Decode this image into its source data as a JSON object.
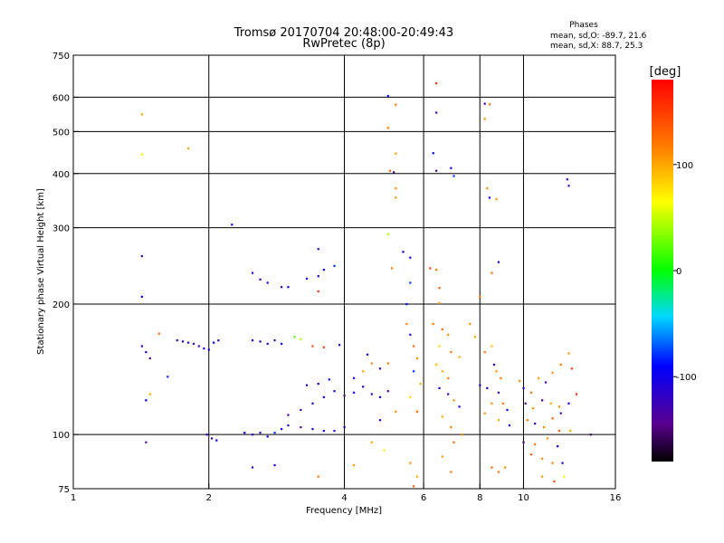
{
  "chart_data": {
    "type": "scatter",
    "title": "Tromsø 20170704 20:48:00-20:49:43",
    "subtitle": "RwPretec (8p)",
    "phase_stats": {
      "header": "Phases",
      "line1": "mean, sd,O: -89.7, 21.6",
      "line2": "mean, sd,X:  88.7, 25.3"
    },
    "xlabel": "Frequency [MHz]",
    "ylabel": "Stationary phase Virtual Height [km]",
    "xscale": "log",
    "yscale": "log",
    "xlim": [
      1,
      16
    ],
    "ylim": [
      75,
      750
    ],
    "x_ticks": [
      1,
      2,
      4,
      6,
      8,
      10,
      16
    ],
    "x_tick_labels": [
      "1",
      "2",
      "4",
      "6",
      "8",
      "10",
      "16"
    ],
    "x_grid": [
      2,
      4,
      6,
      8,
      10
    ],
    "y_ticks": [
      75,
      100,
      200,
      300,
      400,
      500,
      600,
      750
    ],
    "y_tick_labels": [
      "75",
      "100",
      "200",
      "300",
      "400",
      "500",
      "600",
      "750"
    ],
    "y_grid": [
      100,
      200,
      300,
      400,
      500,
      600
    ],
    "grid": true,
    "colorbar": {
      "label": "[deg]",
      "ticks": [
        100,
        0,
        -100
      ],
      "tick_labels": [
        "100",
        "0",
        "-100"
      ],
      "range": [
        -180,
        180
      ]
    },
    "points": [
      [
        1.42,
        548,
        100
      ],
      [
        1.42,
        443,
        70
      ],
      [
        1.42,
        258,
        -130
      ],
      [
        1.42,
        208,
        -90
      ],
      [
        1.42,
        160,
        -130
      ],
      [
        1.45,
        155,
        -110
      ],
      [
        1.48,
        150,
        -140
      ],
      [
        1.45,
        120,
        -90
      ],
      [
        1.48,
        124,
        100
      ],
      [
        1.45,
        96,
        -140
      ],
      [
        1.55,
        171,
        130
      ],
      [
        1.62,
        136,
        -80
      ],
      [
        1.8,
        457,
        100
      ],
      [
        1.7,
        165,
        -120
      ],
      [
        1.75,
        164,
        -110
      ],
      [
        1.8,
        163,
        -100
      ],
      [
        1.85,
        162,
        -120
      ],
      [
        1.9,
        160,
        -130
      ],
      [
        1.95,
        158,
        -110
      ],
      [
        2.0,
        157,
        -100
      ],
      [
        2.05,
        163,
        -90
      ],
      [
        2.1,
        165,
        -120
      ],
      [
        1.98,
        100,
        -110
      ],
      [
        2.03,
        98,
        -120
      ],
      [
        2.08,
        97,
        -90
      ],
      [
        2.25,
        305,
        -90
      ],
      [
        2.5,
        236,
        -110
      ],
      [
        2.6,
        228,
        -120
      ],
      [
        2.7,
        224,
        -100
      ],
      [
        2.9,
        219,
        -130
      ],
      [
        3.0,
        219,
        -90
      ],
      [
        3.3,
        229,
        -110
      ],
      [
        3.5,
        232,
        -100
      ],
      [
        3.6,
        240,
        -90
      ],
      [
        3.8,
        245,
        -80
      ],
      [
        3.5,
        268,
        -120
      ],
      [
        3.5,
        214,
        150
      ],
      [
        2.5,
        165,
        -100
      ],
      [
        2.6,
        164,
        -120
      ],
      [
        2.7,
        162,
        -110
      ],
      [
        2.8,
        165,
        -130
      ],
      [
        2.9,
        162,
        -90
      ],
      [
        3.1,
        168,
        20
      ],
      [
        3.2,
        166,
        40
      ],
      [
        3.4,
        160,
        140
      ],
      [
        3.6,
        159,
        150
      ],
      [
        3.9,
        161,
        -110
      ],
      [
        2.4,
        101,
        -100
      ],
      [
        2.5,
        100,
        -110
      ],
      [
        2.6,
        101,
        -120
      ],
      [
        2.7,
        99,
        -90
      ],
      [
        2.8,
        101,
        -80
      ],
      [
        2.9,
        103,
        -100
      ],
      [
        3.0,
        105,
        -120
      ],
      [
        3.2,
        104,
        -130
      ],
      [
        3.4,
        103,
        -110
      ],
      [
        3.6,
        102,
        -100
      ],
      [
        3.8,
        102,
        -120
      ],
      [
        4.0,
        104,
        -110
      ],
      [
        3.0,
        111,
        -140
      ],
      [
        3.2,
        114,
        -130
      ],
      [
        3.4,
        118,
        -120
      ],
      [
        3.6,
        122,
        -110
      ],
      [
        3.8,
        126,
        -100
      ],
      [
        4.0,
        123,
        -150
      ],
      [
        3.3,
        130,
        -110
      ],
      [
        3.5,
        131,
        -100
      ],
      [
        3.7,
        134,
        -90
      ],
      [
        4.2,
        125,
        -100
      ],
      [
        4.4,
        129,
        -110
      ],
      [
        4.6,
        124,
        -120
      ],
      [
        4.8,
        122,
        -100
      ],
      [
        5.0,
        126,
        -140
      ],
      [
        4.2,
        135,
        -110
      ],
      [
        4.4,
        140,
        100
      ],
      [
        4.6,
        146,
        110
      ],
      [
        4.8,
        142,
        -110
      ],
      [
        5.0,
        146,
        120
      ],
      [
        4.5,
        153,
        -110
      ],
      [
        4.8,
        108,
        -100
      ],
      [
        5.2,
        113,
        110
      ],
      [
        4.6,
        96,
        100
      ],
      [
        4.9,
        92,
        70
      ],
      [
        4.2,
        85,
        110
      ],
      [
        3.5,
        80,
        120
      ],
      [
        2.5,
        84,
        -120
      ],
      [
        2.8,
        85,
        -100
      ],
      [
        5.0,
        604,
        -90
      ],
      [
        5.2,
        577,
        120
      ],
      [
        5.0,
        510,
        120
      ],
      [
        5.2,
        445,
        100
      ],
      [
        5.05,
        406,
        130
      ],
      [
        5.15,
        403,
        -150
      ],
      [
        5.2,
        370,
        110
      ],
      [
        5.2,
        352,
        110
      ],
      [
        5.0,
        290,
        40
      ],
      [
        5.4,
        264,
        -110
      ],
      [
        5.1,
        242,
        120
      ],
      [
        5.6,
        224,
        -80
      ],
      [
        5.6,
        256,
        -100
      ],
      [
        5.5,
        200,
        -90
      ],
      [
        5.5,
        180,
        120
      ],
      [
        5.6,
        170,
        -110
      ],
      [
        5.7,
        160,
        130
      ],
      [
        5.8,
        150,
        110
      ],
      [
        5.7,
        140,
        -80
      ],
      [
        5.9,
        131,
        100
      ],
      [
        5.6,
        122,
        80
      ],
      [
        5.8,
        113,
        130
      ],
      [
        5.6,
        86,
        110
      ],
      [
        5.8,
        80,
        100
      ],
      [
        5.7,
        76,
        130
      ],
      [
        6.4,
        646,
        150
      ],
      [
        6.4,
        553,
        -120
      ],
      [
        6.3,
        446,
        -100
      ],
      [
        6.4,
        406,
        -130
      ],
      [
        6.9,
        412,
        -90
      ],
      [
        7.0,
        395,
        -80
      ],
      [
        6.2,
        242,
        150
      ],
      [
        6.4,
        240,
        120
      ],
      [
        6.5,
        218,
        130
      ],
      [
        6.5,
        201,
        110
      ],
      [
        6.3,
        180,
        120
      ],
      [
        6.6,
        175,
        130
      ],
      [
        6.8,
        170,
        110
      ],
      [
        6.5,
        160,
        80
      ],
      [
        6.9,
        155,
        120
      ],
      [
        7.2,
        151,
        100
      ],
      [
        6.4,
        145,
        90
      ],
      [
        6.6,
        140,
        100
      ],
      [
        6.8,
        135,
        120
      ],
      [
        6.5,
        128,
        -110
      ],
      [
        6.8,
        124,
        -130
      ],
      [
        7.0,
        120,
        110
      ],
      [
        7.2,
        116,
        -100
      ],
      [
        6.6,
        110,
        100
      ],
      [
        6.9,
        104,
        120
      ],
      [
        7.3,
        100,
        110
      ],
      [
        7.0,
        96,
        130
      ],
      [
        6.6,
        89,
        110
      ],
      [
        6.9,
        82,
        120
      ],
      [
        8.2,
        580,
        -130
      ],
      [
        8.4,
        578,
        120
      ],
      [
        8.2,
        535,
        110
      ],
      [
        8.3,
        370,
        110
      ],
      [
        8.7,
        349,
        110
      ],
      [
        8.4,
        352,
        -100
      ],
      [
        8.8,
        250,
        -110
      ],
      [
        8.5,
        236,
        130
      ],
      [
        8.0,
        208,
        120
      ],
      [
        7.6,
        180,
        110
      ],
      [
        7.8,
        168,
        100
      ],
      [
        8.2,
        155,
        120
      ],
      [
        8.5,
        160,
        90
      ],
      [
        8.6,
        145,
        -110
      ],
      [
        8.7,
        140,
        110
      ],
      [
        8.9,
        135,
        120
      ],
      [
        8.0,
        130,
        -110
      ],
      [
        8.3,
        128,
        -120
      ],
      [
        8.8,
        125,
        -130
      ],
      [
        8.5,
        118,
        110
      ],
      [
        9.0,
        118,
        120
      ],
      [
        9.2,
        114,
        -90
      ],
      [
        8.2,
        112,
        110
      ],
      [
        8.8,
        108,
        100
      ],
      [
        9.3,
        105,
        -100
      ],
      [
        8.5,
        84,
        130
      ],
      [
        8.8,
        82,
        120
      ],
      [
        9.1,
        84,
        110
      ],
      [
        9.8,
        133,
        110
      ],
      [
        10.0,
        128,
        -110
      ],
      [
        10.4,
        125,
        120
      ],
      [
        10.8,
        135,
        100
      ],
      [
        11.2,
        132,
        -120
      ],
      [
        11.6,
        139,
        110
      ],
      [
        12.1,
        145,
        120
      ],
      [
        12.8,
        142,
        150
      ],
      [
        13.1,
        124,
        160
      ],
      [
        10.1,
        118,
        -140
      ],
      [
        10.5,
        115,
        110
      ],
      [
        11.0,
        120,
        -130
      ],
      [
        11.5,
        118,
        100
      ],
      [
        12.0,
        116,
        110
      ],
      [
        12.6,
        118,
        -110
      ],
      [
        10.2,
        108,
        120
      ],
      [
        10.6,
        106,
        -120
      ],
      [
        11.1,
        104,
        110
      ],
      [
        11.6,
        109,
        130
      ],
      [
        12.1,
        112,
        -130
      ],
      [
        12.7,
        102,
        100
      ],
      [
        10.0,
        96,
        -150
      ],
      [
        10.6,
        95,
        120
      ],
      [
        11.3,
        98,
        110
      ],
      [
        11.9,
        94,
        -110
      ],
      [
        10.4,
        90,
        130
      ],
      [
        11.0,
        88,
        110
      ],
      [
        11.6,
        86,
        120
      ],
      [
        12.2,
        86,
        -110
      ],
      [
        11.0,
        80,
        110
      ],
      [
        11.7,
        78,
        140
      ],
      [
        12.3,
        80,
        60
      ],
      [
        12.5,
        388,
        -120
      ],
      [
        12.6,
        375,
        -130
      ],
      [
        12.6,
        154,
        110
      ],
      [
        12.0,
        102,
        130
      ],
      [
        14.1,
        100,
        -150
      ]
    ]
  }
}
